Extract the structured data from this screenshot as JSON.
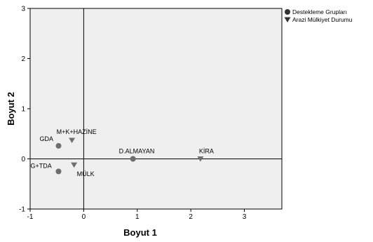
{
  "chart_data": {
    "type": "scatter",
    "xlabel": "Boyut 1",
    "ylabel": "Boyut 2",
    "xlim": [
      -1,
      3.7
    ],
    "ylim": [
      -1,
      3
    ],
    "x_ticks": [
      "-1",
      "0",
      "1",
      "2",
      "3"
    ],
    "y_ticks": [
      "-1",
      "0",
      "1",
      "2",
      "3"
    ],
    "legend_position": "top-right",
    "reference_lines": {
      "x": 0,
      "y": 0
    },
    "series": [
      {
        "name": "Destekleme Grupları",
        "marker": "circle",
        "color": "#6e6e6e",
        "points": [
          {
            "label": "GDA",
            "x": -0.47,
            "y": 0.26
          },
          {
            "label": "G+TDA",
            "x": -0.47,
            "y": -0.25
          },
          {
            "label": "D.ALMAYAN",
            "x": 0.92,
            "y": 0.0
          }
        ]
      },
      {
        "name": "Arazi Mülkiyet Durumu",
        "marker": "triangle-down",
        "color": "#6e6e6e",
        "points": [
          {
            "label": "M+K+HAZİNE",
            "x": -0.22,
            "y": 0.37
          },
          {
            "label": "MÜLK",
            "x": -0.18,
            "y": -0.12
          },
          {
            "label": "KİRA",
            "x": 2.18,
            "y": 0.0
          }
        ]
      }
    ],
    "plot_background": "#efefef"
  }
}
